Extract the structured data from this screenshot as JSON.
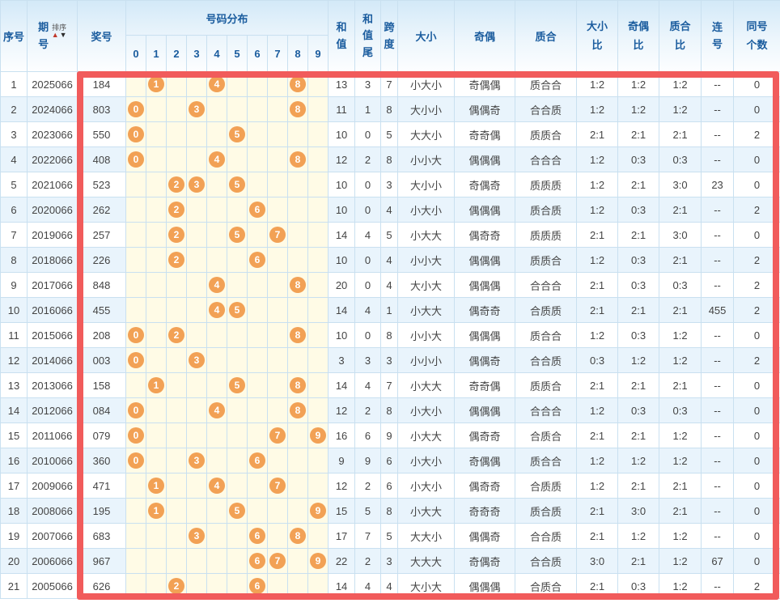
{
  "colors": {
    "highlight_border": "#F15B5B",
    "ball": "#F2A155",
    "header_text": "#1A5C9E",
    "grid_border": "#C9E0F0",
    "even_row_bg": "#E9F4FC",
    "distribution_bg": "#FFFBE6"
  },
  "header": {
    "seq": "序号",
    "issue": "期号",
    "sort_label": "排序",
    "sort_up_icon": "▲",
    "sort_down_icon": "▼",
    "prize": "奖号",
    "distribution": "号码分布",
    "digits": [
      "0",
      "1",
      "2",
      "3",
      "4",
      "5",
      "6",
      "7",
      "8",
      "9"
    ],
    "sum": "和值",
    "sum_tail": "和值尾",
    "span": "跨度",
    "size": "大小",
    "parity": "奇偶",
    "prime": "质合",
    "size_ratio": "大小比",
    "parity_ratio": "奇偶比",
    "prime_ratio": "质合比",
    "consecutive": "连号",
    "same_count": "同号个数"
  },
  "rows": [
    {
      "seq": "1",
      "issue": "2025066",
      "number": "184",
      "balls": [
        1,
        4,
        8
      ],
      "sum": "13",
      "sum_tail": "3",
      "span": "7",
      "size": "小大小",
      "parity": "奇偶偶",
      "prime": "质合合",
      "size_ratio": "1:2",
      "parity_ratio": "1:2",
      "prime_ratio": "1:2",
      "consecutive": "--",
      "same_count": "0"
    },
    {
      "seq": "2",
      "issue": "2024066",
      "number": "803",
      "balls": [
        0,
        3,
        8
      ],
      "sum": "11",
      "sum_tail": "1",
      "span": "8",
      "size": "大小小",
      "parity": "偶偶奇",
      "prime": "合合质",
      "size_ratio": "1:2",
      "parity_ratio": "1:2",
      "prime_ratio": "1:2",
      "consecutive": "--",
      "same_count": "0"
    },
    {
      "seq": "3",
      "issue": "2023066",
      "number": "550",
      "balls": [
        0,
        5
      ],
      "sum": "10",
      "sum_tail": "0",
      "span": "5",
      "size": "大大小",
      "parity": "奇奇偶",
      "prime": "质质合",
      "size_ratio": "2:1",
      "parity_ratio": "2:1",
      "prime_ratio": "2:1",
      "consecutive": "--",
      "same_count": "2"
    },
    {
      "seq": "4",
      "issue": "2022066",
      "number": "408",
      "balls": [
        0,
        4,
        8
      ],
      "sum": "12",
      "sum_tail": "2",
      "span": "8",
      "size": "小小大",
      "parity": "偶偶偶",
      "prime": "合合合",
      "size_ratio": "1:2",
      "parity_ratio": "0:3",
      "prime_ratio": "0:3",
      "consecutive": "--",
      "same_count": "0"
    },
    {
      "seq": "5",
      "issue": "2021066",
      "number": "523",
      "balls": [
        2,
        3,
        5
      ],
      "sum": "10",
      "sum_tail": "0",
      "span": "3",
      "size": "大小小",
      "parity": "奇偶奇",
      "prime": "质质质",
      "size_ratio": "1:2",
      "parity_ratio": "2:1",
      "prime_ratio": "3:0",
      "consecutive": "23",
      "same_count": "0"
    },
    {
      "seq": "6",
      "issue": "2020066",
      "number": "262",
      "balls": [
        2,
        6
      ],
      "sum": "10",
      "sum_tail": "0",
      "span": "4",
      "size": "小大小",
      "parity": "偶偶偶",
      "prime": "质合质",
      "size_ratio": "1:2",
      "parity_ratio": "0:3",
      "prime_ratio": "2:1",
      "consecutive": "--",
      "same_count": "2"
    },
    {
      "seq": "7",
      "issue": "2019066",
      "number": "257",
      "balls": [
        2,
        5,
        7
      ],
      "sum": "14",
      "sum_tail": "4",
      "span": "5",
      "size": "小大大",
      "parity": "偶奇奇",
      "prime": "质质质",
      "size_ratio": "2:1",
      "parity_ratio": "2:1",
      "prime_ratio": "3:0",
      "consecutive": "--",
      "same_count": "0"
    },
    {
      "seq": "8",
      "issue": "2018066",
      "number": "226",
      "balls": [
        2,
        6
      ],
      "sum": "10",
      "sum_tail": "0",
      "span": "4",
      "size": "小小大",
      "parity": "偶偶偶",
      "prime": "质质合",
      "size_ratio": "1:2",
      "parity_ratio": "0:3",
      "prime_ratio": "2:1",
      "consecutive": "--",
      "same_count": "2"
    },
    {
      "seq": "9",
      "issue": "2017066",
      "number": "848",
      "balls": [
        4,
        8
      ],
      "sum": "20",
      "sum_tail": "0",
      "span": "4",
      "size": "大小大",
      "parity": "偶偶偶",
      "prime": "合合合",
      "size_ratio": "2:1",
      "parity_ratio": "0:3",
      "prime_ratio": "0:3",
      "consecutive": "--",
      "same_count": "2"
    },
    {
      "seq": "10",
      "issue": "2016066",
      "number": "455",
      "balls": [
        4,
        5
      ],
      "sum": "14",
      "sum_tail": "4",
      "span": "1",
      "size": "小大大",
      "parity": "偶奇奇",
      "prime": "合质质",
      "size_ratio": "2:1",
      "parity_ratio": "2:1",
      "prime_ratio": "2:1",
      "consecutive": "455",
      "same_count": "2"
    },
    {
      "seq": "11",
      "issue": "2015066",
      "number": "208",
      "balls": [
        0,
        2,
        8
      ],
      "sum": "10",
      "sum_tail": "0",
      "span": "8",
      "size": "小小大",
      "parity": "偶偶偶",
      "prime": "质合合",
      "size_ratio": "1:2",
      "parity_ratio": "0:3",
      "prime_ratio": "1:2",
      "consecutive": "--",
      "same_count": "0"
    },
    {
      "seq": "12",
      "issue": "2014066",
      "number": "003",
      "balls": [
        0,
        3
      ],
      "sum": "3",
      "sum_tail": "3",
      "span": "3",
      "size": "小小小",
      "parity": "偶偶奇",
      "prime": "合合质",
      "size_ratio": "0:3",
      "parity_ratio": "1:2",
      "prime_ratio": "1:2",
      "consecutive": "--",
      "same_count": "2"
    },
    {
      "seq": "13",
      "issue": "2013066",
      "number": "158",
      "balls": [
        1,
        5,
        8
      ],
      "sum": "14",
      "sum_tail": "4",
      "span": "7",
      "size": "小大大",
      "parity": "奇奇偶",
      "prime": "质质合",
      "size_ratio": "2:1",
      "parity_ratio": "2:1",
      "prime_ratio": "2:1",
      "consecutive": "--",
      "same_count": "0"
    },
    {
      "seq": "14",
      "issue": "2012066",
      "number": "084",
      "balls": [
        0,
        4,
        8
      ],
      "sum": "12",
      "sum_tail": "2",
      "span": "8",
      "size": "小大小",
      "parity": "偶偶偶",
      "prime": "合合合",
      "size_ratio": "1:2",
      "parity_ratio": "0:3",
      "prime_ratio": "0:3",
      "consecutive": "--",
      "same_count": "0"
    },
    {
      "seq": "15",
      "issue": "2011066",
      "number": "079",
      "balls": [
        0,
        7,
        9
      ],
      "sum": "16",
      "sum_tail": "6",
      "span": "9",
      "size": "小大大",
      "parity": "偶奇奇",
      "prime": "合质合",
      "size_ratio": "2:1",
      "parity_ratio": "2:1",
      "prime_ratio": "1:2",
      "consecutive": "--",
      "same_count": "0"
    },
    {
      "seq": "16",
      "issue": "2010066",
      "number": "360",
      "balls": [
        0,
        3,
        6
      ],
      "sum": "9",
      "sum_tail": "9",
      "span": "6",
      "size": "小大小",
      "parity": "奇偶偶",
      "prime": "质合合",
      "size_ratio": "1:2",
      "parity_ratio": "1:2",
      "prime_ratio": "1:2",
      "consecutive": "--",
      "same_count": "0"
    },
    {
      "seq": "17",
      "issue": "2009066",
      "number": "471",
      "balls": [
        1,
        4,
        7
      ],
      "sum": "12",
      "sum_tail": "2",
      "span": "6",
      "size": "小大小",
      "parity": "偶奇奇",
      "prime": "合质质",
      "size_ratio": "1:2",
      "parity_ratio": "2:1",
      "prime_ratio": "2:1",
      "consecutive": "--",
      "same_count": "0"
    },
    {
      "seq": "18",
      "issue": "2008066",
      "number": "195",
      "balls": [
        1,
        5,
        9
      ],
      "sum": "15",
      "sum_tail": "5",
      "span": "8",
      "size": "小大大",
      "parity": "奇奇奇",
      "prime": "质合质",
      "size_ratio": "2:1",
      "parity_ratio": "3:0",
      "prime_ratio": "2:1",
      "consecutive": "--",
      "same_count": "0"
    },
    {
      "seq": "19",
      "issue": "2007066",
      "number": "683",
      "balls": [
        3,
        6,
        8
      ],
      "sum": "17",
      "sum_tail": "7",
      "span": "5",
      "size": "大大小",
      "parity": "偶偶奇",
      "prime": "合合质",
      "size_ratio": "2:1",
      "parity_ratio": "1:2",
      "prime_ratio": "1:2",
      "consecutive": "--",
      "same_count": "0"
    },
    {
      "seq": "20",
      "issue": "2006066",
      "number": "967",
      "balls": [
        6,
        7,
        9
      ],
      "sum": "22",
      "sum_tail": "2",
      "span": "3",
      "size": "大大大",
      "parity": "奇偶奇",
      "prime": "合合质",
      "size_ratio": "3:0",
      "parity_ratio": "2:1",
      "prime_ratio": "1:2",
      "consecutive": "67",
      "same_count": "0"
    },
    {
      "seq": "21",
      "issue": "2005066",
      "number": "626",
      "balls": [
        2,
        6
      ],
      "sum": "14",
      "sum_tail": "4",
      "span": "4",
      "size": "大小大",
      "parity": "偶偶偶",
      "prime": "合质合",
      "size_ratio": "2:1",
      "parity_ratio": "0:3",
      "prime_ratio": "1:2",
      "consecutive": "--",
      "same_count": "2"
    }
  ]
}
